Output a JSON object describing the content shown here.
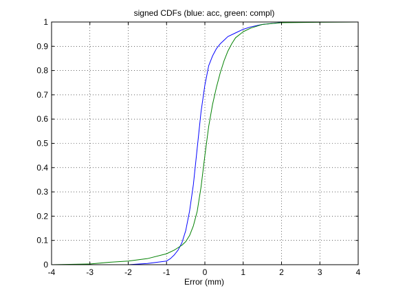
{
  "chart_data": {
    "type": "line",
    "title": "signed CDFs (blue: acc, green: compl)",
    "xlabel": "Error (mm)",
    "ylabel": "",
    "xlim": [
      -4,
      4
    ],
    "ylim": [
      0,
      1
    ],
    "xticks": [
      -4,
      -3,
      -2,
      -1,
      0,
      1,
      2,
      3,
      4
    ],
    "yticks": [
      0,
      0.1,
      0.2,
      0.3,
      0.4,
      0.5,
      0.6,
      0.7,
      0.8,
      0.9,
      1
    ],
    "grid": true,
    "series": [
      {
        "color": "#0000ff",
        "x": [
          -4.0,
          -2.0,
          -1.5,
          -1.0,
          -0.9,
          -0.8,
          -0.7,
          -0.6,
          -0.5,
          -0.4,
          -0.3,
          -0.2,
          -0.1,
          0.0,
          0.1,
          0.2,
          0.3,
          0.4,
          0.5,
          0.6,
          0.8,
          1.0,
          1.2,
          1.5,
          2.0,
          2.3
        ],
        "y": [
          0.0,
          0.0,
          0.005,
          0.015,
          0.025,
          0.04,
          0.06,
          0.09,
          0.14,
          0.22,
          0.33,
          0.48,
          0.63,
          0.74,
          0.82,
          0.86,
          0.89,
          0.91,
          0.925,
          0.94,
          0.955,
          0.97,
          0.98,
          0.99,
          0.998,
          1.0
        ]
      },
      {
        "color": "#008000",
        "x": [
          -4.0,
          -3.0,
          -2.5,
          -2.0,
          -1.5,
          -1.0,
          -0.8,
          -0.6,
          -0.5,
          -0.4,
          -0.3,
          -0.2,
          -0.1,
          0.0,
          0.1,
          0.2,
          0.3,
          0.4,
          0.5,
          0.6,
          0.7,
          0.8,
          1.0,
          1.2,
          1.5,
          2.0,
          3.0,
          4.0
        ],
        "y": [
          0.0,
          0.003,
          0.01,
          0.015,
          0.025,
          0.045,
          0.06,
          0.08,
          0.095,
          0.12,
          0.16,
          0.22,
          0.32,
          0.45,
          0.57,
          0.66,
          0.73,
          0.79,
          0.84,
          0.88,
          0.91,
          0.935,
          0.96,
          0.975,
          0.99,
          0.997,
          0.999,
          1.0
        ]
      }
    ]
  }
}
